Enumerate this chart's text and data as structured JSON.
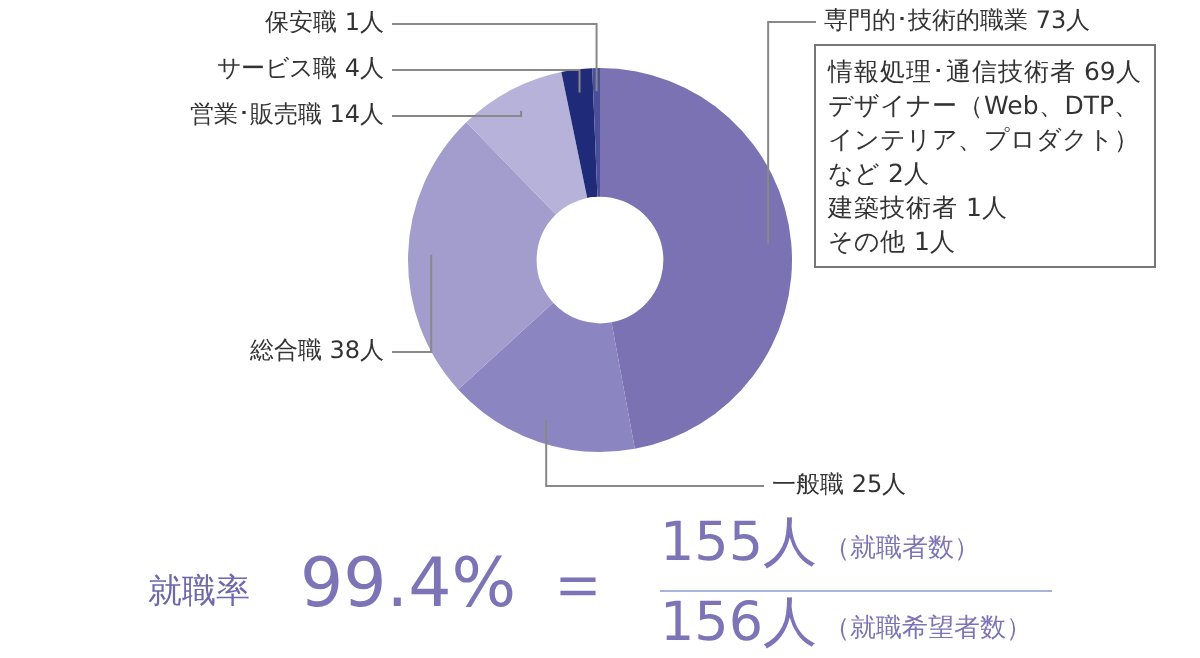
{
  "chart_data": {
    "type": "donut",
    "categories": [
      "専門的･技術的職業",
      "一般職",
      "総合職",
      "営業･販売職",
      "サービス職",
      "保安職"
    ],
    "values": [
      73,
      25,
      38,
      14,
      4,
      1
    ],
    "value_labels": [
      "73人",
      "25人",
      "38人",
      "14人",
      "4人",
      "1人"
    ],
    "colors": [
      "#7a72b3",
      "#8b85c1",
      "#a39dcd",
      "#b6b2d9",
      "#1f2a78",
      "#4a4f9a"
    ],
    "legend": false,
    "annotations": [
      "情報処理･通信技術者 69人",
      "デザイナー（Web、DTP、",
      "インテリア、プロダクト）",
      "など 2人",
      "建築技術者 1人",
      "その他 1人",
      "就職率",
      "99.4%",
      "＝",
      "155人",
      "（就職者数）",
      "156人",
      "（就職希望者数）"
    ]
  }
}
